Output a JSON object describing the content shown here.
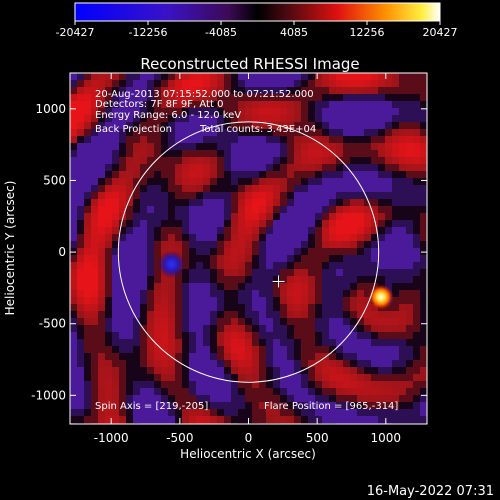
{
  "colorbar": {
    "ticks": [
      "-20427",
      "-12256",
      "-4085",
      "4085",
      "12256",
      "20427"
    ],
    "min": -20427,
    "max": 20427
  },
  "chart_data": {
    "type": "heatmap",
    "title": "Reconstructed RHESSI Image",
    "xlabel": "Heliocentric X (arcsec)",
    "ylabel": "Heliocentric Y (arcsec)",
    "xlim": [
      -1300,
      1300
    ],
    "ylim": [
      -1200,
      1250
    ],
    "xticks": [
      -1000,
      -500,
      0,
      500,
      1000
    ],
    "yticks": [
      -1000,
      -500,
      0,
      500,
      1000
    ],
    "annotations": [
      "20-Aug-2013 07:15:52.000 to 07:21:52.000",
      "Detectors: 7F 8F 9F, Att 0",
      "Energy Range: 6.0 - 12.0 keV",
      "Back Projection",
      "Total counts: 3.43E+04"
    ],
    "spin_axis_label": "Spin Axis = [219,-205]",
    "flare_position_label": "Flare Position = [965,-314]",
    "spin_axis": [
      219,
      -205
    ],
    "flare_position": [
      965,
      -314
    ],
    "solar_limb_radius": 948,
    "sources": [
      {
        "x": 965,
        "y": -314,
        "value": 20427
      },
      {
        "x": -560,
        "y": -85,
        "value": -12256
      }
    ]
  },
  "footer": {
    "timestamp": "16-May-2022 07:31"
  }
}
